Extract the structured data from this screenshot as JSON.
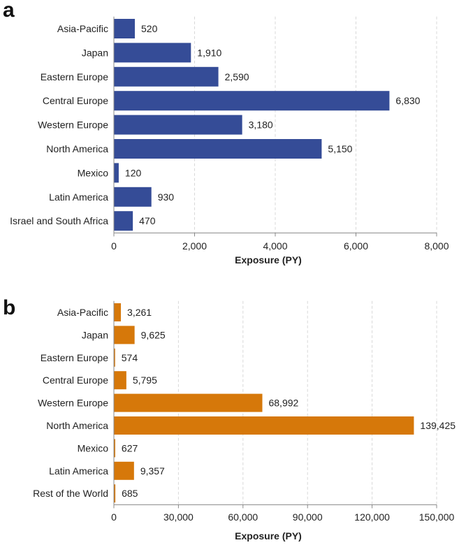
{
  "chart_data": [
    {
      "type": "bar",
      "orientation": "horizontal",
      "panel_label": "a",
      "categories": [
        "Asia-Pacific",
        "Japan",
        "Eastern Europe",
        "Central Europe",
        "Western Europe",
        "North America",
        "Mexico",
        "Latin America",
        "Israel and South Africa"
      ],
      "values": [
        520,
        1910,
        2590,
        6830,
        3180,
        5150,
        120,
        930,
        470
      ],
      "value_labels": [
        "520",
        "1,910",
        "2,590",
        "6,830",
        "3,180",
        "5,150",
        "120",
        "930",
        "470"
      ],
      "xlabel": "Exposure (PY)",
      "xlim": [
        0,
        8000
      ],
      "ticks": [
        0,
        2000,
        4000,
        6000,
        8000
      ],
      "tick_labels": [
        "0",
        "2,000",
        "4,000",
        "6,000",
        "8,000"
      ],
      "grid": true,
      "color": "#354c97"
    },
    {
      "type": "bar",
      "orientation": "horizontal",
      "panel_label": "b",
      "categories": [
        "Asia-Pacific",
        "Japan",
        "Eastern Europe",
        "Central Europe",
        "Western Europe",
        "North America",
        "Mexico",
        "Latin America",
        "Rest of the World"
      ],
      "values": [
        3261,
        9625,
        574,
        5795,
        68992,
        139425,
        627,
        9357,
        685
      ],
      "value_labels": [
        "3,261",
        "9,625",
        "574",
        "5,795",
        "68,992",
        "139,425",
        "627",
        "9,357",
        "685"
      ],
      "xlabel": "Exposure (PY)",
      "xlim": [
        0,
        150000
      ],
      "ticks": [
        0,
        30000,
        60000,
        90000,
        120000,
        150000
      ],
      "tick_labels": [
        "0",
        "30,000",
        "60,000",
        "90,000",
        "120,000",
        "150,000"
      ],
      "grid": true,
      "color": "#d6780a"
    }
  ]
}
